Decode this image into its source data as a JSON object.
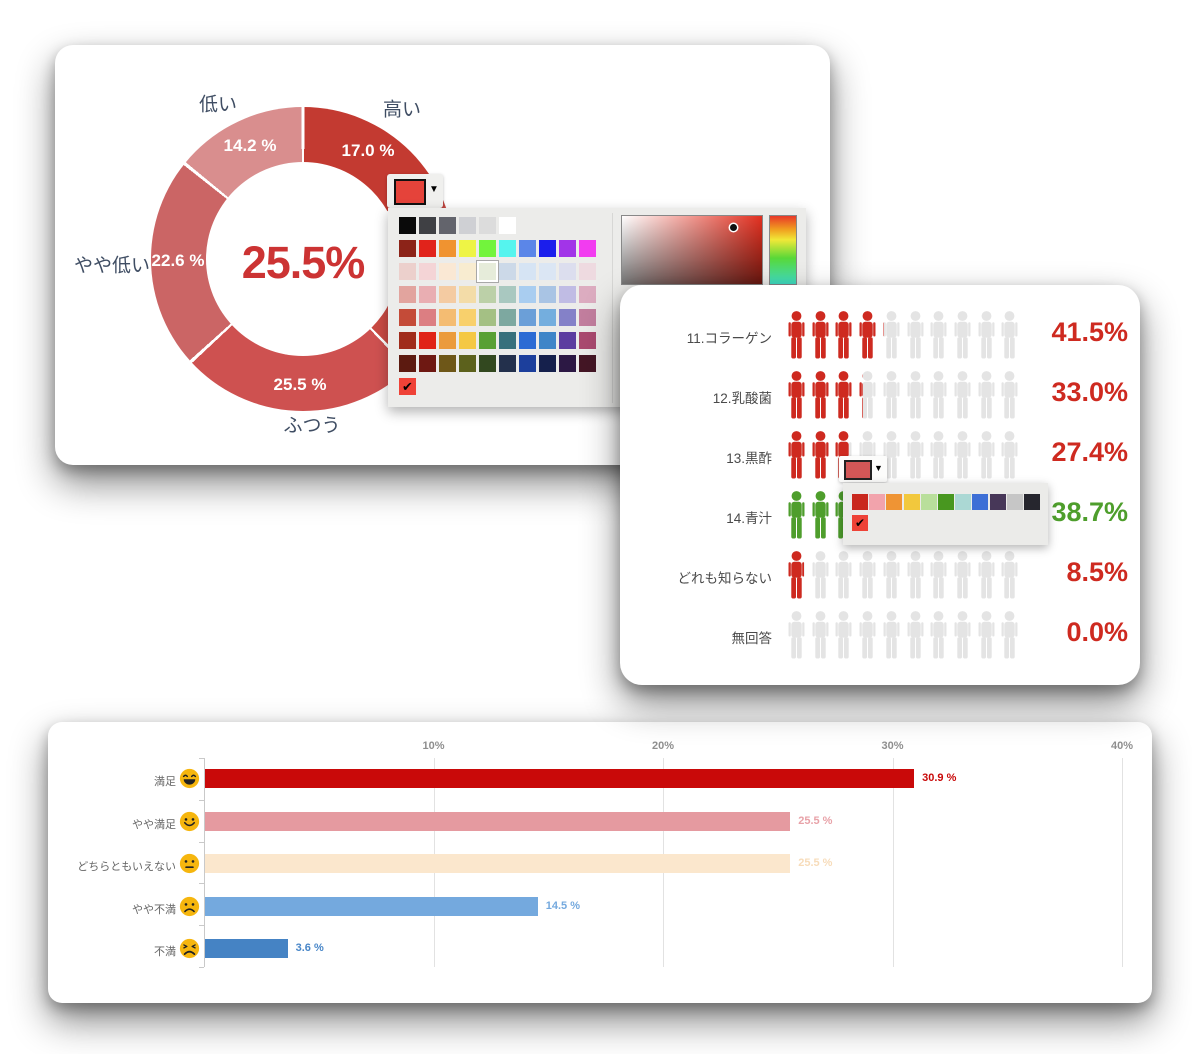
{
  "chart_data": [
    {
      "type": "donut",
      "center_label": "25.5%",
      "center_label_color": "#cc3333",
      "segments": [
        {
          "label": "高い",
          "value": 17.0,
          "pct_label": "17.0 %",
          "color": "#c33a31"
        },
        {
          "label": "",
          "value": 20.7,
          "pct_label": "",
          "color": "#c94a43",
          "note": "hidden behind color picker"
        },
        {
          "label": "ふつう",
          "value": 25.5,
          "pct_label": "25.5 %",
          "color": "#ce5150"
        },
        {
          "label": "やや低い",
          "value": 22.6,
          "pct_label": "22.6 %",
          "color": "#cb6565"
        },
        {
          "label": "低い",
          "value": 14.2,
          "pct_label": "14.2 %",
          "color": "#d98e8e"
        }
      ]
    },
    {
      "type": "pictograph",
      "icons_per_row": 10,
      "empty_color": "#e4e4e4",
      "rows": [
        {
          "label": "11.コラーゲン",
          "value": 41.5,
          "value_label": "41.5%",
          "fill_color": "#ce2a20",
          "value_color": "#ce2a20"
        },
        {
          "label": "12.乳酸菌",
          "value": 33.0,
          "value_label": "33.0%",
          "fill_color": "#ce2a20",
          "value_color": "#ce2a20"
        },
        {
          "label": "13.黒酢",
          "value": 27.4,
          "value_label": "27.4%",
          "fill_color": "#ce2a20",
          "value_color": "#ce2a20"
        },
        {
          "label": "14.青汁",
          "value": 38.7,
          "value_label": "38.7%",
          "fill_color": "#4e9e2c",
          "value_color": "#4e9e2c"
        },
        {
          "label": "どれも知らない",
          "value": 8.5,
          "value_label": "8.5%",
          "fill_color": "#ce2a20",
          "value_color": "#ce2a20"
        },
        {
          "label": "無回答",
          "value": 0.0,
          "value_label": "0.0%",
          "fill_color": "#ce2a20",
          "value_color": "#ce2a20"
        }
      ]
    },
    {
      "type": "bar",
      "orientation": "horizontal",
      "xlim": [
        0,
        40
      ],
      "x_ticks": [
        {
          "label": "10%",
          "value": 10
        },
        {
          "label": "20%",
          "value": 20
        },
        {
          "label": "30%",
          "value": 30
        },
        {
          "label": "40%",
          "value": 40
        }
      ],
      "rows": [
        {
          "label": "満足",
          "face": "grin",
          "value": 30.9,
          "value_label": "30.9 %",
          "color": "#c90909",
          "value_color": "#c90909"
        },
        {
          "label": "やや満足",
          "face": "smile",
          "value": 25.5,
          "value_label": "25.5 %",
          "color": "#e59aa0",
          "value_color": "#e8a2a8"
        },
        {
          "label": "どちらともいえない",
          "face": "neutral",
          "value": 25.5,
          "value_label": "25.5 %",
          "color": "#fbe7cd",
          "value_color": "#f7dcba"
        },
        {
          "label": "やや不満",
          "face": "frown",
          "value": 14.5,
          "value_label": "14.5 %",
          "color": "#74a9de",
          "value_color": "#74a9de"
        },
        {
          "label": "不満",
          "face": "cry",
          "value": 3.6,
          "value_label": "3.6 %",
          "color": "#4583c4",
          "value_color": "#4886c8"
        }
      ],
      "face_color": "#f6b60e"
    }
  ],
  "color_picker_large": {
    "button_swatch_color": "#e5433a",
    "dropdown_arrow": "▼",
    "palette_rows": [
      [
        "#0a0a0a",
        "#3f4044",
        "#63646c",
        "#cfd0d4",
        "#dcdcdc",
        "#ffffff"
      ],
      [
        "#8c2318",
        "#e1231b",
        "#f09330",
        "#eef445",
        "#72f43c",
        "#55f4ee",
        "#5b86e8",
        "#1b1eec",
        "#a234e8",
        "#f23cf0"
      ],
      [
        "#ecd0cc",
        "#f4d4d6",
        "#fae8d4",
        "#f8ecd0",
        "#e6ecda",
        "#ccd9e8",
        "#d6e4f4",
        "#dbe6f4",
        "#dcdeee",
        "#eedae0"
      ],
      [
        "#e2a49e",
        "#e9aeb2",
        "#f4cba2",
        "#f3dca8",
        "#bcd0a8",
        "#a9c8c0",
        "#a9cdf0",
        "#a9c4e4",
        "#c0bce4",
        "#dcacc0"
      ],
      [
        "#c44b38",
        "#dc7e82",
        "#f4bc72",
        "#f8d06c",
        "#a4c084",
        "#7da8a0",
        "#6b9fd8",
        "#74aede",
        "#8481c8",
        "#c27e9e"
      ],
      [
        "#a02c1c",
        "#e02317",
        "#eb9b3c",
        "#f4c844",
        "#58a034",
        "#37707c",
        "#2b6bd4",
        "#3e85c8",
        "#5c3da0",
        "#aa4a70"
      ],
      [
        "#5c1a10",
        "#6e1812",
        "#6e5718",
        "#5c611c",
        "#32481f",
        "#23304c",
        "#1c3f9c",
        "#15204c",
        "#2c1844",
        "#441625"
      ]
    ],
    "selected_cell": {
      "row": 2,
      "col": 4
    },
    "check_swatch": {
      "color": "#ef4237",
      "glyph": "✔"
    },
    "hue_stops": [
      "#e83828",
      "#f0a020",
      "#f0e838",
      "#58d838",
      "#40e0c8"
    ]
  },
  "color_picker_small": {
    "button_swatch_color": "#d25757",
    "dropdown_arrow": "▼",
    "swatches": [
      "#c9281e",
      "#f2a3ac",
      "#ef9434",
      "#f2c83d",
      "#b9df9b",
      "#48971f",
      "#abd8d4",
      "#3d6fd6",
      "#473758",
      "#c6c6c6",
      "#26262e"
    ],
    "check_swatch": {
      "color": "#ee4237",
      "glyph": "✔"
    }
  }
}
